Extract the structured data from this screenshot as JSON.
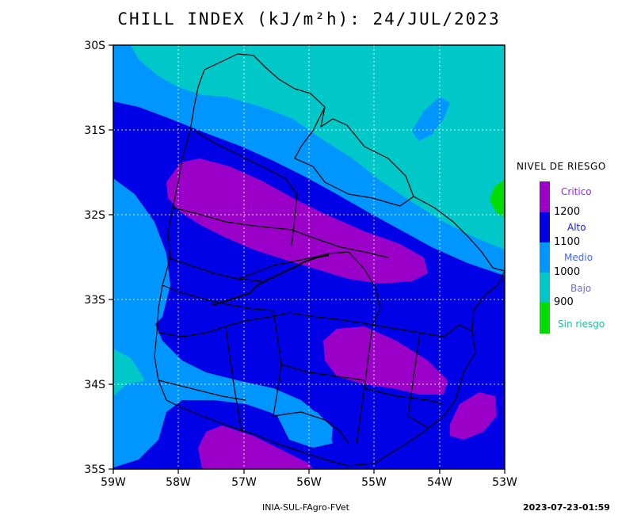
{
  "title": "CHILL INDEX (kJ/m²h): 24/JUL/2023",
  "map": {
    "lat_ticks": [
      "30S",
      "31S",
      "32S",
      "33S",
      "34S",
      "35S"
    ],
    "lon_ticks": [
      "59W",
      "58W",
      "57W",
      "56W",
      "55W",
      "54W",
      "53W"
    ],
    "colors": {
      "critico": "#9b00c8",
      "alto": "#0000e6",
      "medio": "#0096ff",
      "bajo": "#00c8c8",
      "sin_riesgo": "#00dc00"
    }
  },
  "legend": {
    "title": "NIVEL DE RIESGO",
    "critico": "Critico",
    "t1200": "1200",
    "alto": "Alto",
    "t1100": "1100",
    "medio": "Medio",
    "t1000": "1000",
    "bajo": "Bajo",
    "t900": "900",
    "sin_riesgo": "Sin riesgo"
  },
  "footer": {
    "credit": "INIA-SUL-FAgro-FVet",
    "timestamp": "2023-07-23-01:59"
  }
}
